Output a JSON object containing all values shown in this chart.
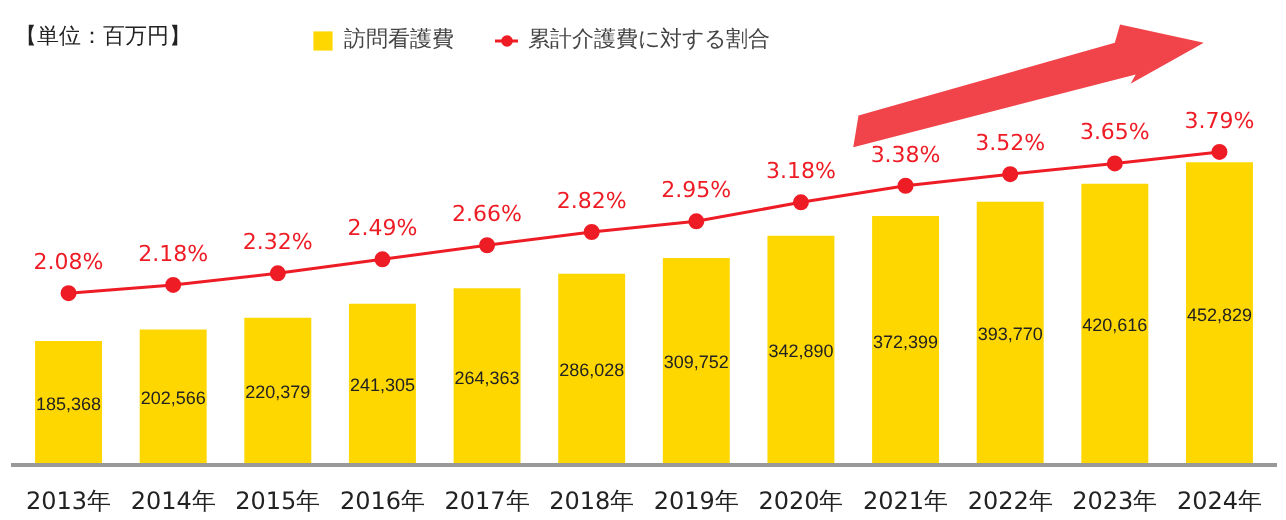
{
  "chart_data": {
    "type": "bar",
    "categories": [
      "2013年",
      "2014年",
      "2015年",
      "2016年",
      "2017年",
      "2018年",
      "2019年",
      "2020年",
      "2021年",
      "2022年",
      "2023年",
      "2024年"
    ],
    "series": [
      {
        "name": "訪問看護費",
        "color": "#ffd700",
        "values": [
          185368,
          202566,
          220379,
          241305,
          264363,
          286028,
          309752,
          342890,
          372399,
          393770,
          420616,
          452829
        ],
        "value_labels": [
          "185,368",
          "202,566",
          "220,379",
          "241,305",
          "264,363",
          "286,028",
          "309,752",
          "342,890",
          "372,399",
          "393,770",
          "420,616",
          "452,829"
        ]
      },
      {
        "name": "累計介護費に対する割合",
        "type": "line",
        "axis": "y2",
        "color": "#ee1c25",
        "marker": "circle",
        "values": [
          2.08,
          2.18,
          2.32,
          2.49,
          2.66,
          2.82,
          2.95,
          3.18,
          3.38,
          3.52,
          3.65,
          3.79
        ],
        "value_labels": [
          "2.08%",
          "2.18%",
          "2.32%",
          "2.49%",
          "2.66%",
          "2.82%",
          "2.95%",
          "3.18%",
          "3.38%",
          "3.52%",
          "3.65%",
          "3.79%"
        ]
      }
    ],
    "tick_labels": "x",
    "annotations": [
      "【単位：百万円】"
    ],
    "legend": "top",
    "grid": false
  }
}
